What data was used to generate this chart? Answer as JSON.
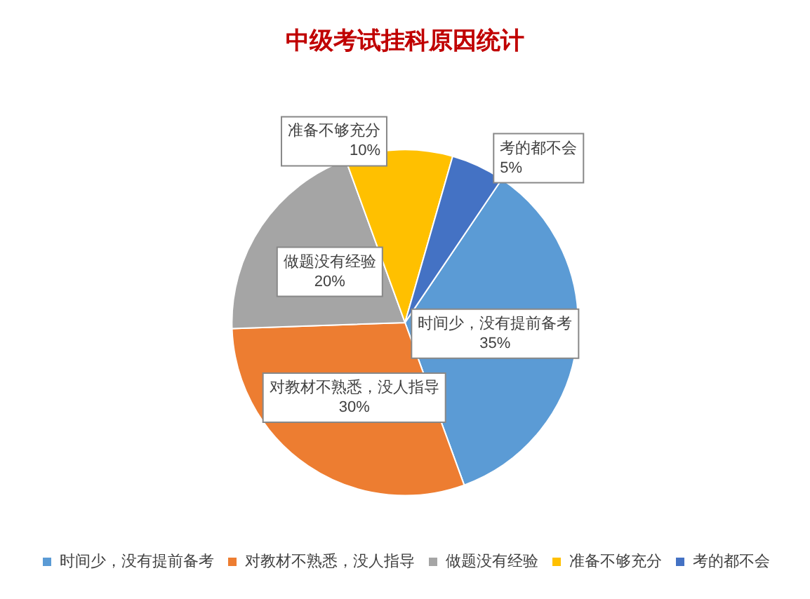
{
  "chart_data": {
    "type": "pie",
    "title": "中级考试挂科原因统计",
    "categories": [
      "时间少，没有提前备考",
      "对教材不熟悉，没人指导",
      "做题没有经验",
      "准备不够充分",
      "考的都不会"
    ],
    "values": [
      35,
      30,
      20,
      10,
      5
    ],
    "colors": [
      "#5b9bd5",
      "#ed7d31",
      "#a5a5a5",
      "#ffc000",
      "#4472c4"
    ],
    "value_labels": [
      "35%",
      "30%",
      "20%",
      "10%",
      "5%"
    ],
    "legend": "bottom"
  }
}
